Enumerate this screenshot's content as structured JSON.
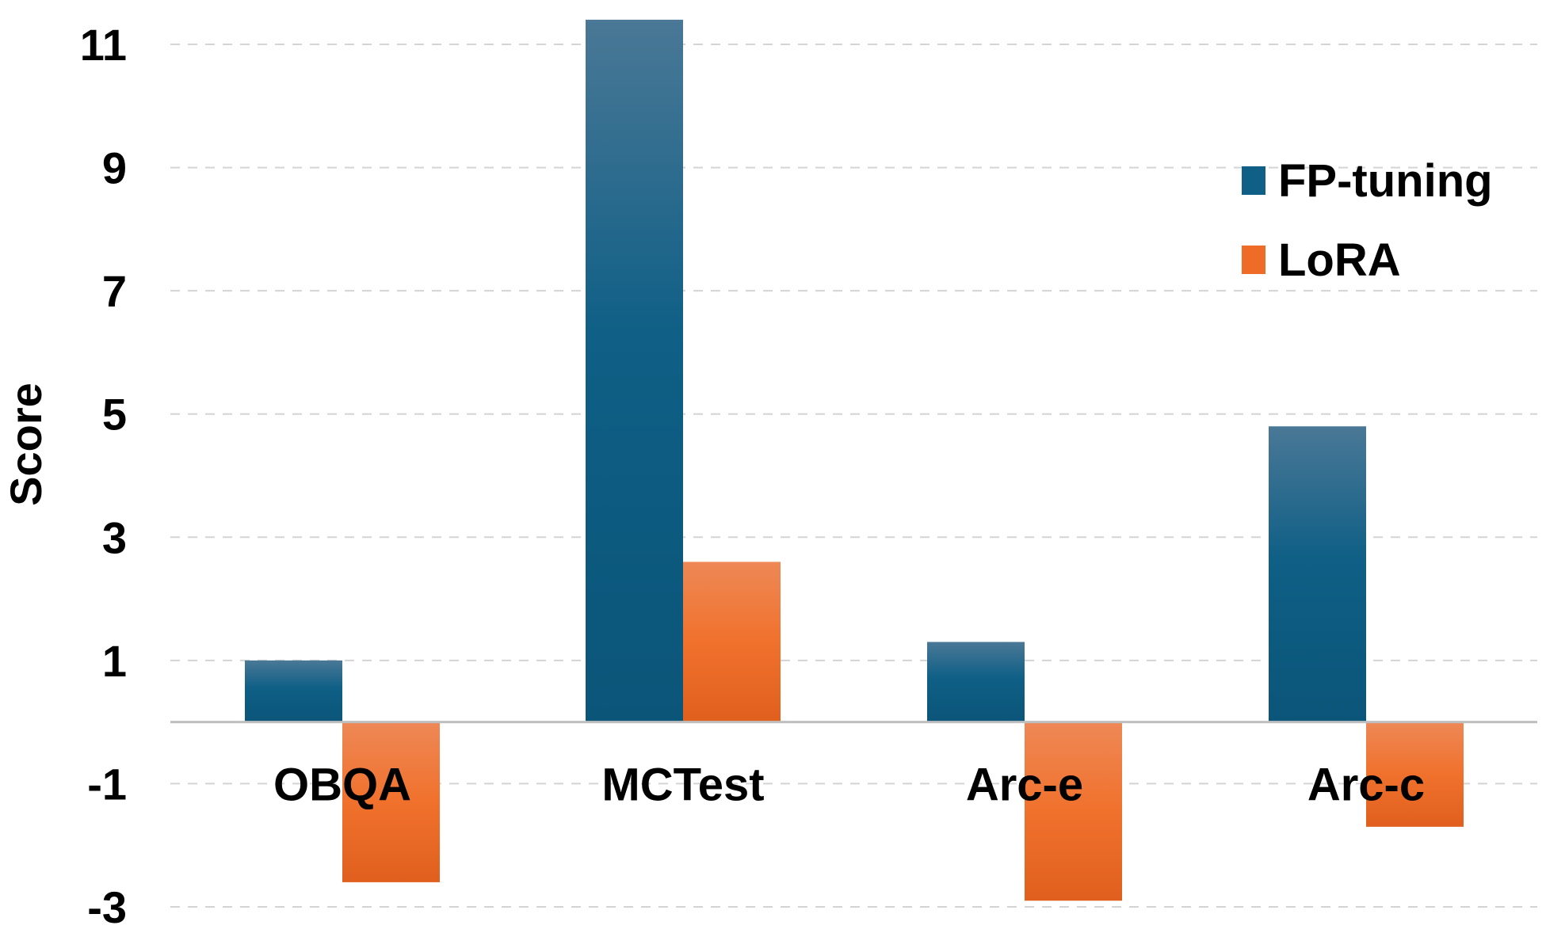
{
  "chart_data": {
    "type": "bar",
    "title": "",
    "xlabel": "",
    "ylabel": "Score",
    "categories": [
      "OBQA",
      "MCTest",
      "Arc-e",
      "Arc-c"
    ],
    "series": [
      {
        "name": "FP-tuning",
        "values": [
          1.0,
          11.4,
          1.3,
          4.8
        ],
        "color": "#0d5a82"
      },
      {
        "name": "LoRA",
        "values": [
          -2.6,
          2.6,
          -2.9,
          -1.7
        ],
        "color": "#ec6a24"
      }
    ],
    "ylim": [
      -3,
      11.5
    ],
    "yticks": [
      11,
      9,
      7,
      5,
      3,
      1,
      -1,
      -3
    ],
    "ytick_labels": [
      "11",
      "9",
      "7",
      "5",
      "3",
      "1",
      "-1",
      "-3"
    ],
    "grid": true,
    "grid_style": "dashed",
    "legend_position": "top-right"
  }
}
